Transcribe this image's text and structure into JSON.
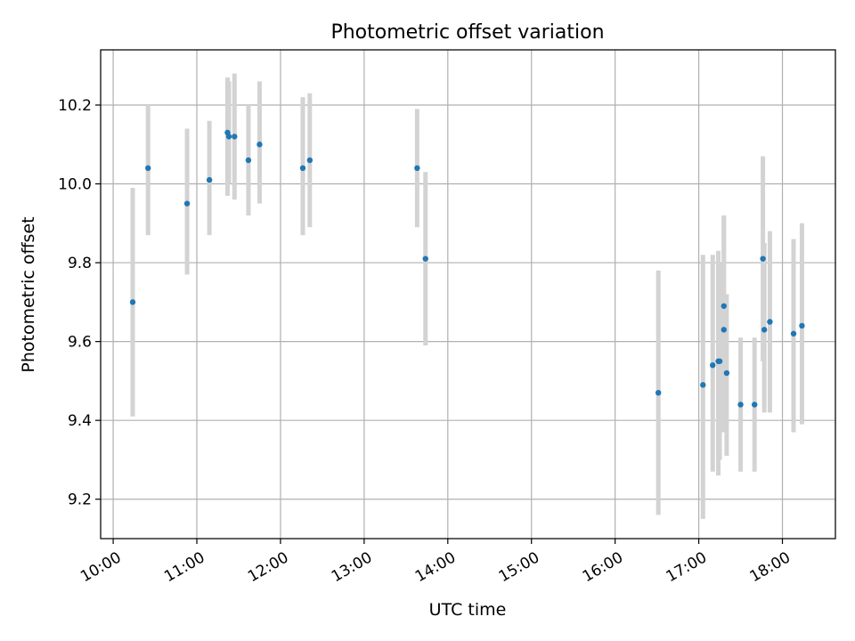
{
  "chart_data": {
    "type": "scatter",
    "title": "Photometric offset variation",
    "xlabel": "UTC time",
    "ylabel": "Photometric offset",
    "xlim": [
      "09:51",
      "18:38"
    ],
    "ylim": [
      9.1,
      10.34
    ],
    "x_ticks": [
      "10:00",
      "11:00",
      "12:00",
      "13:00",
      "14:00",
      "15:00",
      "16:00",
      "17:00",
      "18:00"
    ],
    "y_ticks": [
      9.2,
      9.4,
      9.6,
      9.8,
      10.0,
      10.2
    ],
    "grid": true,
    "marker_color": "#1f77b4",
    "errorbar_color": "#d3d3d3",
    "series": [
      {
        "points": [
          {
            "x": "10:14",
            "y": 9.7,
            "lo": 9.41,
            "hi": 9.99
          },
          {
            "x": "10:25",
            "y": 10.04,
            "lo": 9.87,
            "hi": 10.2
          },
          {
            "x": "10:53",
            "y": 9.95,
            "lo": 9.77,
            "hi": 10.14
          },
          {
            "x": "11:09",
            "y": 10.01,
            "lo": 9.87,
            "hi": 10.16
          },
          {
            "x": "11:22",
            "y": 10.13,
            "lo": 9.97,
            "hi": 10.27
          },
          {
            "x": "11:23",
            "y": 10.12,
            "lo": 10.0,
            "hi": 10.26
          },
          {
            "x": "11:27",
            "y": 10.12,
            "lo": 9.96,
            "hi": 10.28
          },
          {
            "x": "11:37",
            "y": 10.06,
            "lo": 9.92,
            "hi": 10.2
          },
          {
            "x": "11:45",
            "y": 10.1,
            "lo": 9.95,
            "hi": 10.26
          },
          {
            "x": "12:16",
            "y": 10.04,
            "lo": 9.87,
            "hi": 10.22
          },
          {
            "x": "12:21",
            "y": 10.06,
            "lo": 9.89,
            "hi": 10.23
          },
          {
            "x": "13:38",
            "y": 10.04,
            "lo": 9.89,
            "hi": 10.19
          },
          {
            "x": "13:44",
            "y": 9.81,
            "lo": 9.59,
            "hi": 10.03
          },
          {
            "x": "16:31",
            "y": 9.47,
            "lo": 9.16,
            "hi": 9.78
          },
          {
            "x": "17:03",
            "y": 9.49,
            "lo": 9.15,
            "hi": 9.82
          },
          {
            "x": "17:10",
            "y": 9.54,
            "lo": 9.27,
            "hi": 9.82
          },
          {
            "x": "17:14",
            "y": 9.55,
            "lo": 9.26,
            "hi": 9.83
          },
          {
            "x": "17:15",
            "y": 9.55,
            "lo": 9.3,
            "hi": 9.8
          },
          {
            "x": "17:18",
            "y": 9.63,
            "lo": 9.37,
            "hi": 9.92
          },
          {
            "x": "17:18",
            "y": 9.69,
            "lo": 9.45,
            "hi": 9.92
          },
          {
            "x": "17:20",
            "y": 9.52,
            "lo": 9.31,
            "hi": 9.72
          },
          {
            "x": "17:30",
            "y": 9.44,
            "lo": 9.27,
            "hi": 9.61
          },
          {
            "x": "17:40",
            "y": 9.44,
            "lo": 9.27,
            "hi": 9.61
          },
          {
            "x": "17:46",
            "y": 9.81,
            "lo": 9.55,
            "hi": 10.07
          },
          {
            "x": "17:47",
            "y": 9.63,
            "lo": 9.42,
            "hi": 9.85
          },
          {
            "x": "17:51",
            "y": 9.65,
            "lo": 9.42,
            "hi": 9.88
          },
          {
            "x": "18:08",
            "y": 9.62,
            "lo": 9.37,
            "hi": 9.86
          },
          {
            "x": "18:14",
            "y": 9.64,
            "lo": 9.39,
            "hi": 9.9
          }
        ]
      }
    ]
  }
}
